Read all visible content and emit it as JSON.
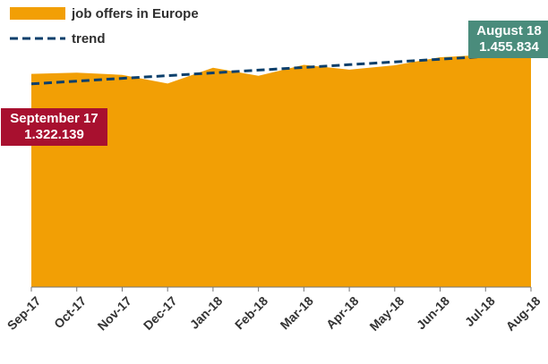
{
  "colors": {
    "area": "#F29F05",
    "trend": "#0B3F6B",
    "callout_start_bg": "#A8102F",
    "callout_end_bg": "#4A8C7C",
    "axis": "#777777"
  },
  "legend": {
    "area_label": "job offers in Europe",
    "trend_label": "trend"
  },
  "callouts": {
    "start": {
      "title": "September 17",
      "value": "1.322.139"
    },
    "end": {
      "title": "August 18",
      "value": "1.455.834"
    }
  },
  "chart_data": {
    "type": "area",
    "title": "",
    "xlabel": "",
    "ylabel": "",
    "legend_position": "top-left",
    "grid": false,
    "categories": [
      "Sep-17",
      "Oct-17",
      "Nov-17",
      "Dec-17",
      "Jan-18",
      "Feb-18",
      "Mar-18",
      "Apr-18",
      "May-18",
      "Jun-18",
      "Jul-18",
      "Aug-18"
    ],
    "ylim": [
      0,
      1780000
    ],
    "series": [
      {
        "name": "job offers in Europe",
        "type": "area",
        "values": [
          1322139,
          1330000,
          1316000,
          1262000,
          1360000,
          1310000,
          1378000,
          1348000,
          1375000,
          1425000,
          1440000,
          1455834
        ]
      },
      {
        "name": "trend",
        "type": "line",
        "style": "dashed",
        "values": [
          1260000,
          1277000,
          1294000,
          1311000,
          1328000,
          1345000,
          1362000,
          1379000,
          1396000,
          1413000,
          1430000,
          1447000
        ]
      }
    ]
  }
}
